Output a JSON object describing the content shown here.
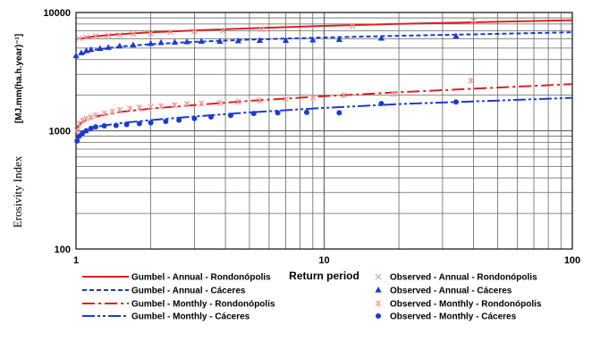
{
  "chart_data": {
    "type": "scatter",
    "x_scale": "log",
    "y_scale": "log",
    "xlim": [
      1,
      100
    ],
    "ylim": [
      100,
      10000
    ],
    "xlabel": "Return period",
    "ylabel": "Erosivity Index",
    "ylabel_unit": "[MJ.mm(ha.h.year)⁻¹]",
    "x_ticks": [
      "1",
      "10",
      "100"
    ],
    "y_ticks": [
      "100",
      "1000",
      "10000"
    ],
    "grid": true,
    "legend_position": "bottom",
    "series": [
      {
        "name": "Gumbel - Annual - Rondonópolis",
        "kind": "line",
        "style": "solid",
        "color": "#e02020",
        "x": [
          1.05,
          1.1,
          1.2,
          1.5,
          2,
          3,
          5,
          10,
          20,
          50,
          100
        ],
        "y": [
          6000,
          6150,
          6300,
          6550,
          6800,
          7050,
          7350,
          7700,
          8000,
          8350,
          8600
        ]
      },
      {
        "name": "Gumbel - Annual - Cáceres",
        "kind": "line",
        "style": "dashed",
        "color": "#1a3ad6",
        "x": [
          1.05,
          1.1,
          1.2,
          1.5,
          2,
          3,
          5,
          10,
          20,
          50,
          100
        ],
        "y": [
          4400,
          4600,
          4850,
          5150,
          5400,
          5650,
          5900,
          6150,
          6350,
          6600,
          6800
        ]
      },
      {
        "name": "Gumbel - Monthly - Rondonópolis",
        "kind": "line",
        "style": "dashdot",
        "color": "#e02020",
        "x": [
          1.01,
          1.05,
          1.1,
          1.2,
          1.5,
          2,
          3,
          5,
          10,
          20,
          50,
          100
        ],
        "y": [
          1050,
          1170,
          1240,
          1320,
          1440,
          1540,
          1650,
          1790,
          1960,
          2120,
          2320,
          2480
        ]
      },
      {
        "name": "Gumbel - Monthly - Cáceres",
        "kind": "line",
        "style": "dashdotdot",
        "color": "#1a3ad6",
        "x": [
          1.01,
          1.05,
          1.1,
          1.2,
          1.5,
          2,
          3,
          5,
          10,
          20,
          50,
          100
        ],
        "y": [
          870,
          960,
          1020,
          1080,
          1160,
          1230,
          1320,
          1430,
          1560,
          1680,
          1800,
          1900
        ]
      },
      {
        "name": "Observed - Annual - Rondonópolis",
        "kind": "marker",
        "marker": "x",
        "color": "#e89a9a",
        "x": [
          1.03,
          1.1,
          1.2,
          1.35,
          1.5,
          1.7,
          2.0,
          2.4,
          3.0,
          3.9,
          5.6,
          13,
          40
        ],
        "y": [
          6050,
          6200,
          6350,
          6400,
          6450,
          6550,
          6650,
          6800,
          6900,
          7000,
          7200,
          7700,
          8500
        ]
      },
      {
        "name": "Observed - Annual - Cáceres",
        "kind": "marker",
        "marker": "triangle",
        "color": "#1a3ad6",
        "x": [
          1.0,
          1.05,
          1.1,
          1.15,
          1.25,
          1.35,
          1.5,
          1.7,
          2.0,
          2.2,
          2.5,
          2.8,
          3.2,
          3.8,
          4.5,
          5.5,
          7,
          9,
          11.5,
          17,
          34
        ],
        "y": [
          4300,
          4550,
          4750,
          4850,
          4950,
          5050,
          5200,
          5300,
          5450,
          5550,
          5600,
          5650,
          5700,
          5700,
          5750,
          5800,
          5800,
          5850,
          5900,
          6050,
          6300
        ]
      },
      {
        "name": "Observed - Monthly - Rondonópolis",
        "kind": "marker",
        "marker": "asterisk",
        "color": "#e89a9a",
        "x": [
          1.01,
          1.03,
          1.06,
          1.1,
          1.15,
          1.2,
          1.3,
          1.4,
          1.5,
          1.65,
          1.8,
          2.0,
          2.2,
          2.5,
          2.8,
          3.2,
          3.8,
          4.5,
          5.5,
          7,
          9,
          12,
          19,
          39
        ],
        "y": [
          1000,
          1150,
          1230,
          1270,
          1300,
          1350,
          1400,
          1450,
          1500,
          1540,
          1570,
          1600,
          1620,
          1650,
          1680,
          1700,
          1720,
          1760,
          1800,
          1850,
          1900,
          2000,
          2050,
          2650
        ]
      },
      {
        "name": "Observed - Monthly - Cáceres",
        "kind": "marker",
        "marker": "circle",
        "color": "#1a3ad6",
        "x": [
          1.01,
          1.03,
          1.06,
          1.1,
          1.15,
          1.2,
          1.3,
          1.45,
          1.6,
          1.8,
          2.0,
          2.3,
          2.6,
          3.0,
          3.5,
          4.2,
          5.2,
          6.5,
          8.5,
          11.5,
          17,
          34
        ],
        "y": [
          820,
          900,
          950,
          1000,
          1050,
          1080,
          1100,
          1110,
          1130,
          1150,
          1170,
          1200,
          1230,
          1270,
          1310,
          1350,
          1400,
          1420,
          1430,
          1420,
          1700,
          1750
        ]
      }
    ]
  }
}
